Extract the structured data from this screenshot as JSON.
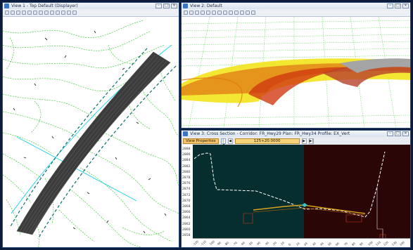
{
  "views": {
    "top": {
      "title": "View 1 - Top Default (Displayer)"
    },
    "default3d": {
      "title": "View 2: Default"
    },
    "cross": {
      "title": "View 3: Cross Section - Corridor: FR_Hwy29 Plan: FR_Hwy34 Profile: EX_Vert",
      "view_properties_label": "View Properties",
      "station": "125+20.0000",
      "nav_first": "|◀",
      "nav_prev": "◀",
      "nav_next": "▶",
      "nav_last": "▶|",
      "y_ticks": [
        "2888",
        "2886",
        "2884",
        "2882",
        "2880",
        "2878",
        "2876",
        "2874",
        "2872",
        "2870",
        "2868",
        "2866",
        "2864",
        "2862",
        "2860",
        "2858"
      ],
      "x_ticks": [
        "-120",
        "-110",
        "-100",
        "-90",
        "-80",
        "-70",
        "-60",
        "-50",
        "-40",
        "-30",
        "-20",
        "-10",
        "0",
        "10",
        "20",
        "30",
        "40",
        "50",
        "60",
        "70",
        "80",
        "90",
        "100",
        "110",
        "120",
        "130",
        "140"
      ]
    }
  },
  "window_buttons": {
    "minimize": "–",
    "maximize": "□",
    "close": "×"
  },
  "colors": {
    "contour": "#27c51f",
    "alignment": "#12d3e8",
    "corridor": "#3a3a3a",
    "xs_left_bg": "#062e2e",
    "xs_right_bg": "#2a0606",
    "terrain_line": "#ffffff"
  }
}
